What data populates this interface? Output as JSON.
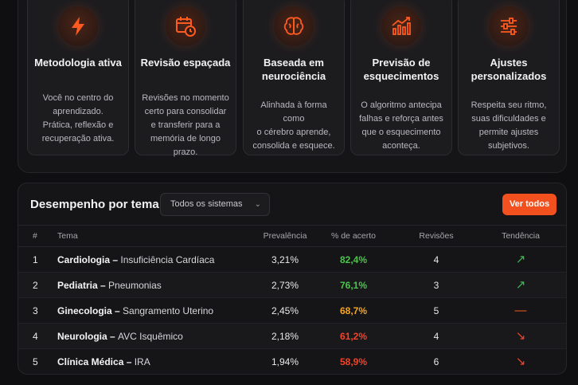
{
  "features": [
    {
      "title": "Metodologia ativa",
      "desc": [
        "Você no centro do",
        "aprendizado.",
        "Prática, reflexão e",
        "recuperação ativa."
      ],
      "icon": "lightning-icon"
    },
    {
      "title": "Revisão espaçada",
      "desc": [
        "Revisões no momento",
        "certo para consolidar",
        "e transferir para a",
        "memória de longo prazo."
      ],
      "icon": "calendar-clock-icon"
    },
    {
      "title_lines": [
        "Baseada em",
        "neurociência"
      ],
      "desc": [
        "Alinhada à forma como",
        "o cérebro aprende,",
        "consolida e esquece."
      ],
      "icon": "brain-icon"
    },
    {
      "title_lines": [
        "Previsão de",
        "esquecimentos"
      ],
      "desc": [
        "O algoritmo antecipa",
        "falhas e reforça antes",
        "que o esquecimento",
        "aconteça."
      ],
      "icon": "chart-growth-icon"
    },
    {
      "title_lines": [
        "Ajustes",
        "personalizados"
      ],
      "desc": [
        "Respeita seu ritmo,",
        "suas dificuldades e",
        "permite ajustes",
        "subjetivos."
      ],
      "icon": "sliders-icon"
    }
  ],
  "panel": {
    "title": "Desempenho por tema",
    "filter_value": "Todos os sistemas",
    "button_label": "Ver todos",
    "columns": [
      "#",
      "Tema",
      "Prevalência",
      "% de acerto",
      "Revisões",
      "Tendência"
    ],
    "rows": [
      {
        "num": "1",
        "system": "Cardiologia",
        "topic": "Insuficiência Cardíaca",
        "prevalence": "3,21%",
        "accuracy": "82,4%",
        "accuracy_color": "#4cc44c",
        "reviews": "4",
        "trend": "↗",
        "trend_color": "#3fb950"
      },
      {
        "num": "2",
        "system": "Pediatria",
        "topic": "Pneumonias",
        "prevalence": "2,73%",
        "accuracy": "76,1%",
        "accuracy_color": "#4cc44c",
        "reviews": "3",
        "trend": "↗",
        "trend_color": "#3fb950"
      },
      {
        "num": "3",
        "system": "Ginecologia",
        "topic": "Sangramento Uterino",
        "prevalence": "2,45%",
        "accuracy": "68,7%",
        "accuracy_color": "#f5a524",
        "reviews": "5",
        "trend": "—",
        "trend_color": "#f25a1f"
      },
      {
        "num": "4",
        "system": "Neurologia",
        "topic": "AVC Isquêmico",
        "prevalence": "2,18%",
        "accuracy": "61,2%",
        "accuracy_color": "#f0442a",
        "reviews": "4",
        "trend": "↘",
        "trend_color": "#f0442a"
      },
      {
        "num": "5",
        "system": "Clínica Médica",
        "topic": "IRA",
        "prevalence": "1,94%",
        "accuracy": "58,9%",
        "accuracy_color": "#f0442a",
        "reviews": "6",
        "trend": "↘",
        "trend_color": "#f0442a"
      }
    ]
  },
  "colors": {
    "accent": "#f2511f",
    "background": "#0f0f11"
  }
}
